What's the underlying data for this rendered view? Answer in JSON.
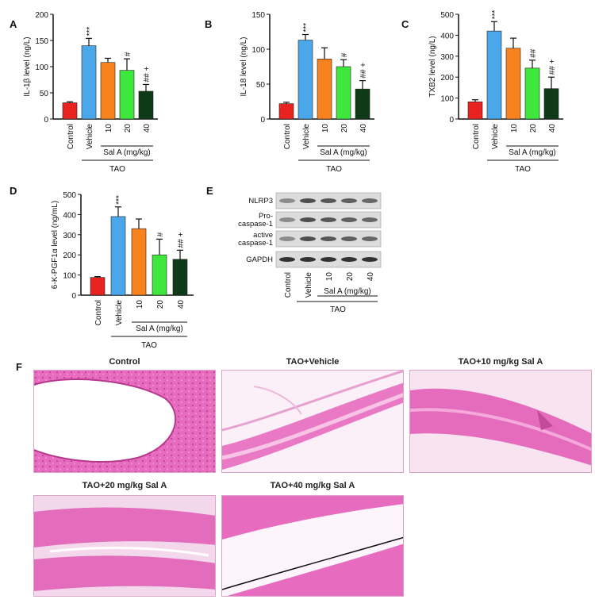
{
  "chart_data": [
    {
      "panel": "A",
      "type": "bar",
      "ylabel": "IL-1β level (ng/L)",
      "ylim": [
        0,
        200
      ],
      "yticks": [
        0,
        50,
        100,
        150,
        200
      ],
      "categories": [
        "Control",
        "Vehicle",
        "10",
        "20",
        "40"
      ],
      "values": [
        31,
        140,
        108,
        93,
        53
      ],
      "errors": [
        2,
        14,
        8,
        22,
        13
      ],
      "sig": [
        "",
        "***",
        "",
        "#",
        "## +"
      ],
      "colors": [
        "#e8231f",
        "#4aa8ea",
        "#f7821e",
        "#3ee63e",
        "#0f3a17"
      ],
      "group_label": "Sal A (mg/kg)",
      "group_span": [
        2,
        4
      ],
      "outer_label": "TAO",
      "outer_span": [
        1,
        4
      ]
    },
    {
      "panel": "B",
      "type": "bar",
      "ylabel": "IL-18 level (ng/L)",
      "ylim": [
        0,
        150
      ],
      "yticks": [
        0,
        50,
        100,
        150
      ],
      "categories": [
        "Control",
        "Vehicle",
        "10",
        "20",
        "40"
      ],
      "values": [
        22,
        113,
        86,
        75,
        43
      ],
      "errors": [
        2,
        8,
        16,
        10,
        12
      ],
      "sig": [
        "",
        "***",
        "",
        "#",
        "## +"
      ],
      "colors": [
        "#e8231f",
        "#4aa8ea",
        "#f7821e",
        "#3ee63e",
        "#0f3a17"
      ],
      "group_label": "Sal A (mg/kg)",
      "group_span": [
        2,
        4
      ],
      "outer_label": "TAO",
      "outer_span": [
        1,
        4
      ]
    },
    {
      "panel": "C",
      "type": "bar",
      "ylabel": "TXB2 level (ng/L)",
      "ylim": [
        0,
        500
      ],
      "yticks": [
        0,
        100,
        200,
        300,
        400,
        500
      ],
      "categories": [
        "Control",
        "Vehicle",
        "10",
        "20",
        "40"
      ],
      "values": [
        82,
        420,
        338,
        243,
        145
      ],
      "errors": [
        10,
        45,
        48,
        38,
        55
      ],
      "sig": [
        "",
        "***",
        "",
        "##",
        "## +"
      ],
      "colors": [
        "#e8231f",
        "#4aa8ea",
        "#f7821e",
        "#3ee63e",
        "#0f3a17"
      ],
      "group_label": "Sal A (mg/kg)",
      "group_span": [
        2,
        4
      ],
      "outer_label": "TAO",
      "outer_span": [
        1,
        4
      ]
    },
    {
      "panel": "D",
      "type": "bar",
      "ylabel": "6-K-PGF1α level (ng/mL)",
      "ylim": [
        0,
        500
      ],
      "yticks": [
        0,
        100,
        200,
        300,
        400,
        500
      ],
      "categories": [
        "Control",
        "Vehicle",
        "10",
        "20",
        "40"
      ],
      "values": [
        88,
        390,
        330,
        200,
        178
      ],
      "errors": [
        4,
        48,
        48,
        78,
        45
      ],
      "sig": [
        "",
        "***",
        "",
        "#",
        "## +"
      ],
      "colors": [
        "#e8231f",
        "#4aa8ea",
        "#f7821e",
        "#3ee63e",
        "#0f3a17"
      ],
      "group_label": "Sal A (mg/kg)",
      "group_span": [
        2,
        4
      ],
      "outer_label": "TAO",
      "outer_span": [
        1,
        4
      ]
    }
  ],
  "blot": {
    "panel": "E",
    "rows": [
      "NLRP3",
      "Pro-\ncaspase-1",
      "active\ncaspase-1",
      "GAPDH"
    ],
    "lanes": [
      "Control",
      "Vehicle",
      "10",
      "20",
      "40"
    ],
    "group_label": "Sal A (mg/kg)",
    "outer_label": "TAO"
  },
  "histology": {
    "panel": "F",
    "panels": [
      {
        "title": "Control"
      },
      {
        "title": "TAO+Vehicle"
      },
      {
        "title": "TAO+10 mg/kg Sal A"
      },
      {
        "title": "TAO+20 mg/kg Sal A"
      },
      {
        "title": "TAO+40 mg/kg Sal A"
      }
    ],
    "stain_color": "#e96fc2"
  }
}
